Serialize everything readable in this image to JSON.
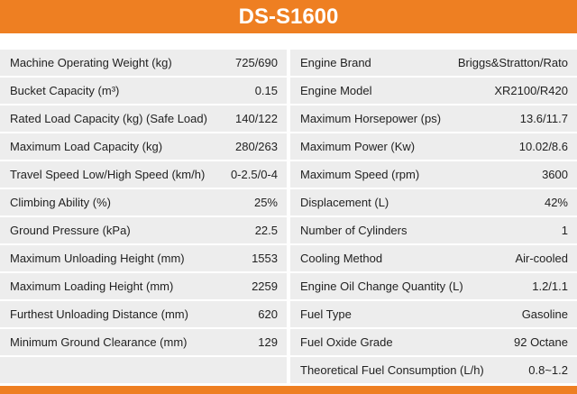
{
  "header": {
    "title": "DS-S1600"
  },
  "left": {
    "rows": [
      [
        "Machine Operating Weight (kg)",
        "725/690"
      ],
      [
        "Bucket Capacity (m³)",
        "0.15"
      ],
      [
        "Rated Load Capacity (kg) (Safe Load)",
        "140/122"
      ],
      [
        "Maximum Load Capacity (kg)",
        "280/263"
      ],
      [
        "Travel Speed Low/High Speed (km/h)",
        "0-2.5/0-4"
      ],
      [
        "Climbing Ability (%)",
        "25%"
      ],
      [
        "Ground Pressure (kPa)",
        "22.5"
      ],
      [
        "Maximum Unloading Height (mm)",
        "1553"
      ],
      [
        "Maximum Loading Height (mm)",
        "2259"
      ],
      [
        "Furthest Unloading Distance (mm)",
        "620"
      ],
      [
        "Minimum Ground Clearance (mm)",
        "129"
      ]
    ]
  },
  "right": {
    "rows": [
      [
        "Engine Brand",
        "Briggs&Stratton/Rato"
      ],
      [
        "Engine Model",
        "XR2100/R420"
      ],
      [
        "Maximum Horsepower (ps)",
        "13.6/11.7"
      ],
      [
        "Maximum Power (Kw)",
        "10.02/8.6"
      ],
      [
        "Maximum Speed (rpm)",
        "3600"
      ],
      [
        "Displacement (L)",
        "42%"
      ],
      [
        "Number of Cylinders",
        "1"
      ],
      [
        "Cooling Method",
        "Air-cooled"
      ],
      [
        "Engine Oil Change Quantity (L)",
        "1.2/1.1"
      ],
      [
        "Fuel Type",
        "Gasoline"
      ],
      [
        "Fuel Oxide Grade",
        "92 Octane"
      ],
      [
        "Theoretical Fuel Consumption (L/h)",
        "0.8~1.2"
      ]
    ]
  }
}
